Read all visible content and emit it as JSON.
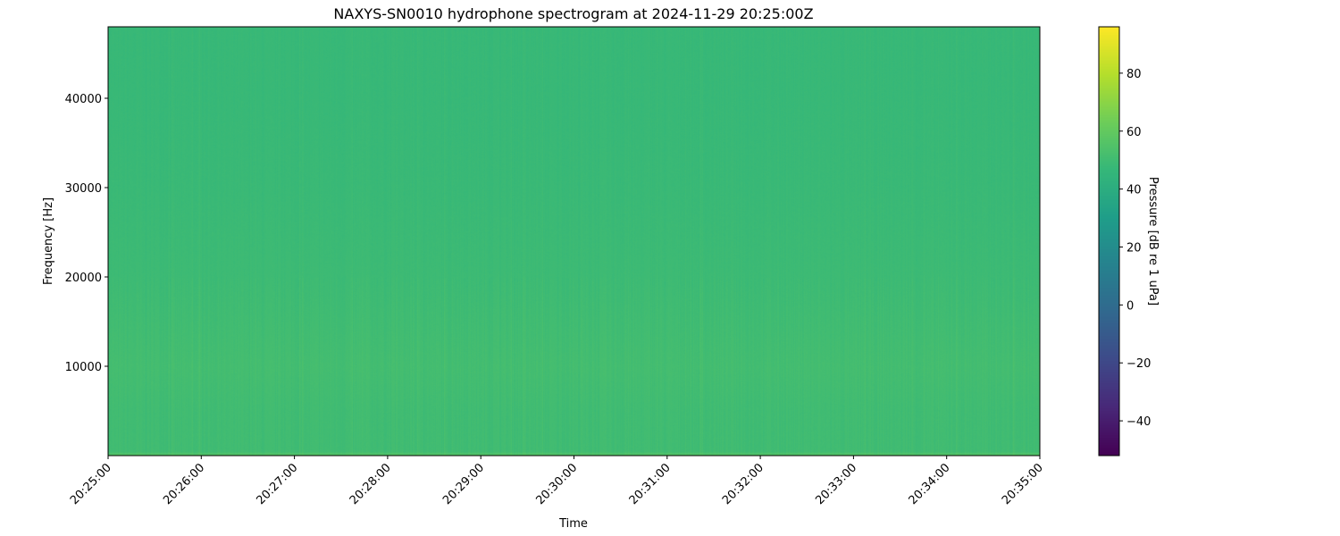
{
  "chart_data": {
    "type": "heatmap",
    "title": "NAXYS-SN0010 hydrophone spectrogram at 2024-11-29 20:25:00Z",
    "xlabel": "Time",
    "ylabel": "Frequency [Hz]",
    "x_range": [
      "20:25:00",
      "20:35:00"
    ],
    "x_ticks": [
      "20:25:00",
      "20:26:00",
      "20:27:00",
      "20:28:00",
      "20:29:00",
      "20:30:00",
      "20:31:00",
      "20:32:00",
      "20:33:00",
      "20:34:00",
      "20:35:00"
    ],
    "ylim": [
      0,
      48000
    ],
    "y_ticks": [
      10000,
      20000,
      30000,
      40000
    ],
    "colormap": "viridis",
    "colorbar": {
      "label": "Pressure [dB re 1 uPa]",
      "range": [
        -52,
        96
      ],
      "ticks": [
        -40,
        -20,
        0,
        20,
        40,
        60,
        80
      ]
    },
    "approx_level_by_frequency": {
      "frequency_hz": [
        0,
        500,
        5000,
        10000,
        15000,
        20000,
        30000,
        40000,
        48000
      ],
      "level_db": [
        58,
        50,
        50,
        51,
        50,
        49,
        48,
        47.5,
        47.5
      ]
    },
    "grid": false
  }
}
